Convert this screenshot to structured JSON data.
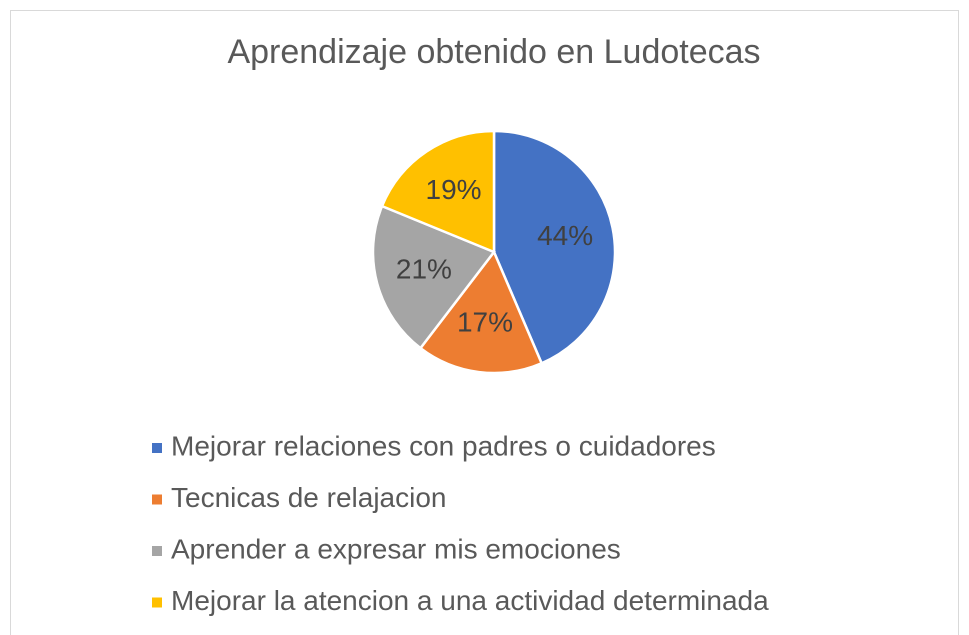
{
  "chart_data": {
    "type": "pie",
    "title": "Aprendizaje obtenido en Ludotecas",
    "categories": [
      "Mejorar relaciones con padres o cuidadores",
      "Tecnicas de relajacion",
      "Aprender a expresar mis emociones",
      "Mejorar la atencion a una actividad determinada"
    ],
    "values": [
      44,
      17,
      21,
      19
    ],
    "value_labels": [
      "44%",
      "17%",
      "21%",
      "19%"
    ],
    "colors": [
      "#4472c4",
      "#ed7d31",
      "#a5a5a5",
      "#ffc000"
    ],
    "legend": "bottom"
  }
}
